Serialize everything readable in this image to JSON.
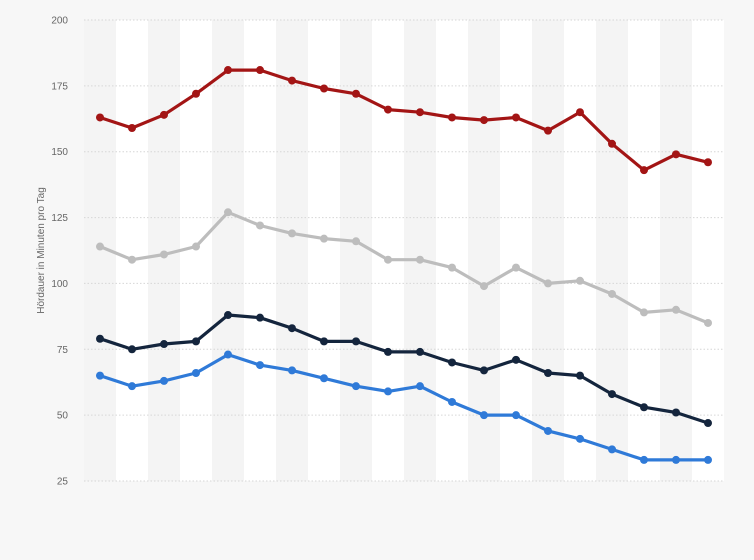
{
  "chart_data": {
    "type": "line",
    "title": "",
    "xlabel": "",
    "ylabel": "Hördauer in Minuten pro Tag",
    "ylim": [
      25,
      200
    ],
    "yticks": [
      25,
      50,
      75,
      100,
      125,
      150,
      175,
      200
    ],
    "x": [
      1,
      2,
      3,
      4,
      5,
      6,
      7,
      8,
      9,
      10,
      11,
      12,
      13,
      14,
      15,
      16,
      17,
      18,
      19,
      20
    ],
    "grid": "horizontal dotted lines, alternating column bands",
    "legend": "none",
    "series": [
      {
        "color": "#a31515",
        "values": [
          163,
          159,
          164,
          172,
          181,
          181,
          177,
          174,
          172,
          166,
          165,
          163,
          162,
          163,
          158,
          165,
          153,
          143,
          149,
          146
        ]
      },
      {
        "color": "#bdbdbd",
        "values": [
          114,
          109,
          111,
          114,
          127,
          122,
          119,
          117,
          116,
          109,
          109,
          106,
          99,
          106,
          100,
          101,
          96,
          89,
          90,
          85
        ]
      },
      {
        "color": "#14253d",
        "values": [
          79,
          75,
          77,
          78,
          88,
          87,
          83,
          78,
          78,
          74,
          74,
          70,
          67,
          71,
          66,
          65,
          58,
          53,
          51,
          47
        ]
      },
      {
        "color": "#2f7ad8",
        "values": [
          65,
          61,
          63,
          66,
          73,
          69,
          67,
          64,
          61,
          59,
          61,
          55,
          50,
          50,
          44,
          41,
          37,
          33,
          33,
          33
        ]
      }
    ]
  }
}
